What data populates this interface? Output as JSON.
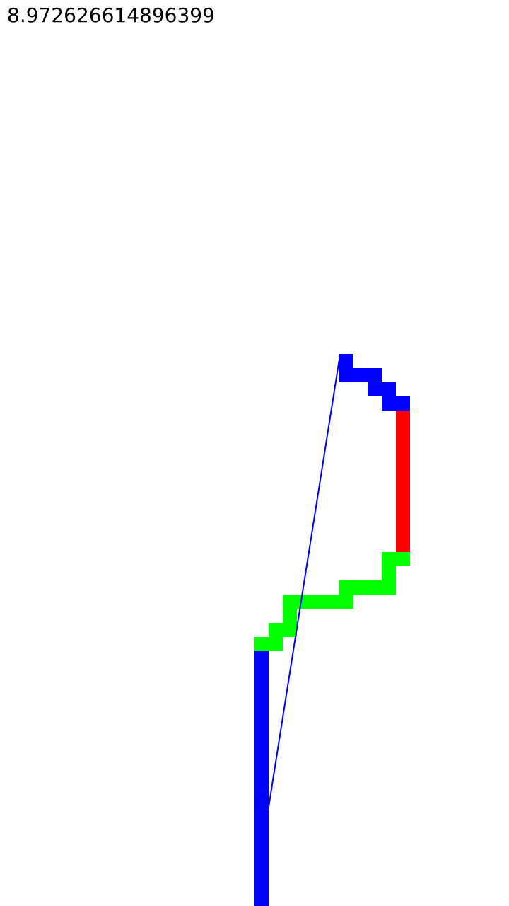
{
  "hud": {
    "value": "8.972626614896399"
  },
  "colors": {
    "background": "#ffffff",
    "text": "#000000",
    "blue": "#0000ff",
    "green": "#00ff00",
    "red": "#ff0000",
    "guide_line": "#0000ff"
  }
}
